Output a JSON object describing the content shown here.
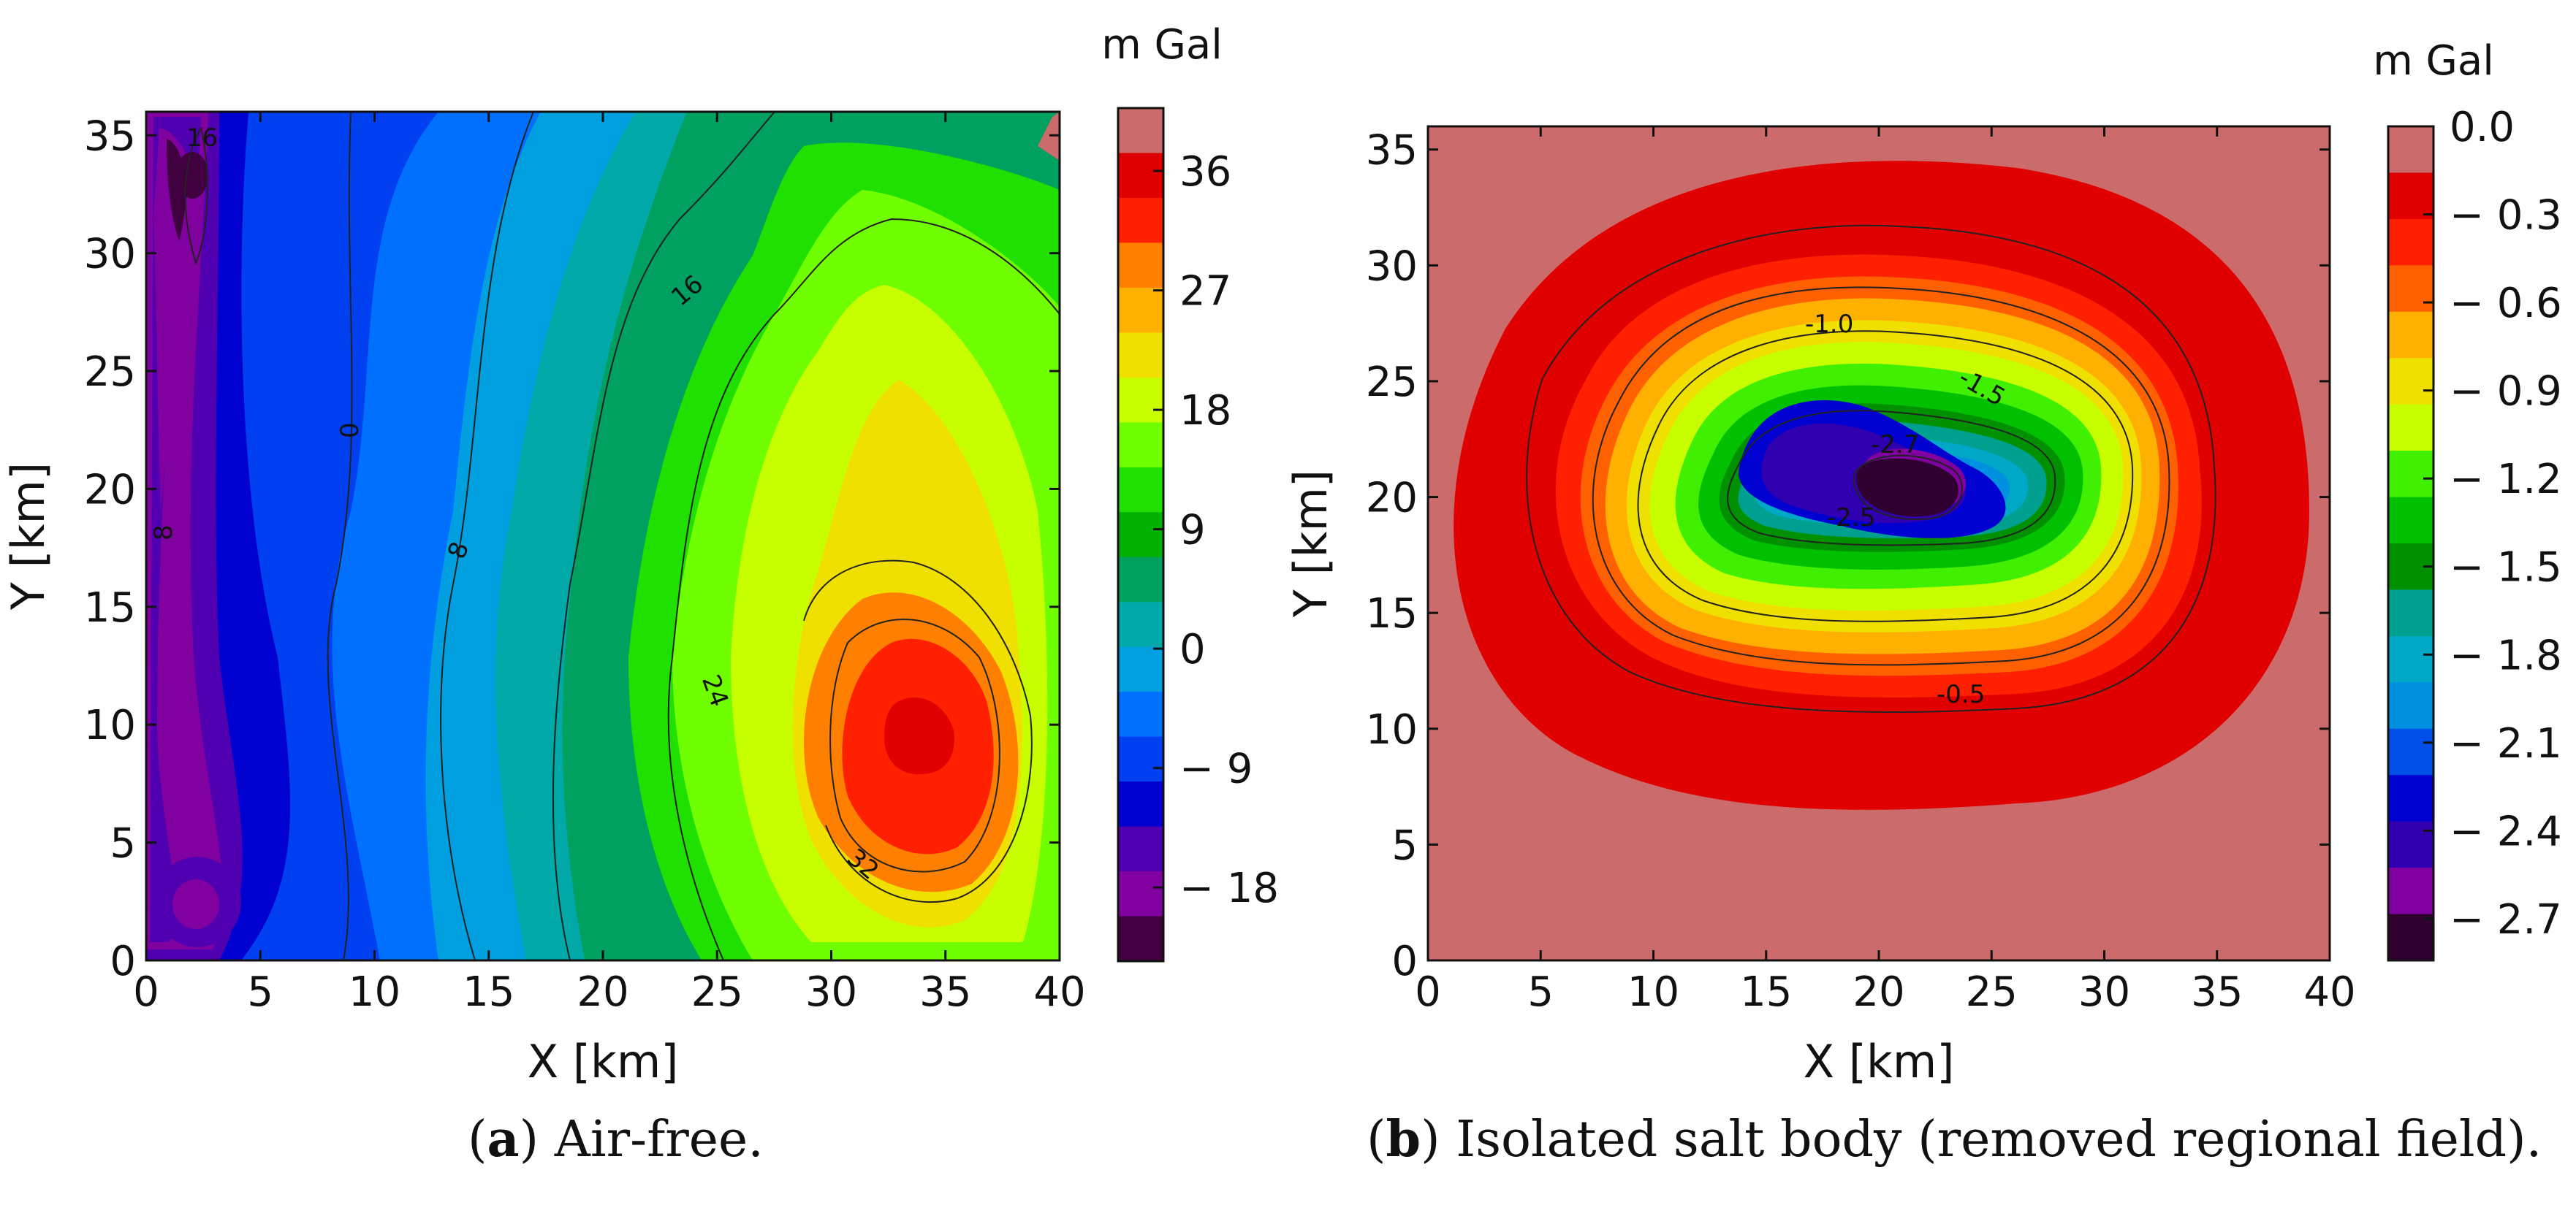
{
  "chart_data": [
    {
      "id": "a",
      "type": "contour",
      "xlabel": "X [km]",
      "ylabel": "Y [km]",
      "xlim": [
        0,
        40
      ],
      "ylim": [
        0,
        36
      ],
      "xticks": [
        "0",
        "5",
        "10",
        "15",
        "20",
        "25",
        "30",
        "35",
        "40"
      ],
      "yticks": [
        "0",
        "5",
        "10",
        "15",
        "20",
        "25",
        "30",
        "35"
      ],
      "colorbar": {
        "unit": "m Gal",
        "ticks": [
          "36",
          "27",
          "18",
          "9",
          "0",
          "− 9",
          "− 18"
        ],
        "colors": [
          "#cc6b6b",
          "#e00000",
          "#ff2000",
          "#ff8000",
          "#ffb000",
          "#f0e000",
          "#c8ff00",
          "#70ff00",
          "#20e000",
          "#00b000",
          "#00a060",
          "#00a8a8",
          "#00a0e0",
          "#0070ff",
          "#0040f0",
          "#0000d0",
          "#5000b0",
          "#8000a0",
          "#400040"
        ]
      },
      "contour_labels": [
        "16",
        "16",
        "0",
        "8",
        "8",
        "24",
        "32"
      ],
      "caption_label": "a",
      "caption_text": " Air-free."
    },
    {
      "id": "b",
      "type": "contour",
      "xlabel": "X [km]",
      "ylabel": "Y [km]",
      "xlim": [
        0,
        40
      ],
      "ylim": [
        0,
        36
      ],
      "xticks": [
        "0",
        "5",
        "10",
        "15",
        "20",
        "25",
        "30",
        "35",
        "40"
      ],
      "yticks": [
        "0",
        "5",
        "10",
        "15",
        "20",
        "25",
        "30",
        "35"
      ],
      "colorbar": {
        "unit": "m Gal",
        "ticks": [
          "0.0",
          "− 0.3",
          "− 0.6",
          "− 0.9",
          "− 1.2",
          "− 1.5",
          "− 1.8",
          "− 2.1",
          "− 2.4",
          "− 2.7"
        ],
        "colors": [
          "#cc6b6b",
          "#e00000",
          "#ff2000",
          "#ff6000",
          "#ffb000",
          "#f0e000",
          "#c8ff00",
          "#40f000",
          "#00c000",
          "#009000",
          "#00a090",
          "#00a8c8",
          "#0090e0",
          "#0050e8",
          "#0000d0",
          "#3000b0",
          "#8000a0",
          "#300030"
        ]
      },
      "contour_labels": [
        "-1.0",
        "-1.5",
        "-2.7",
        "-2.5",
        "-0.5"
      ],
      "caption_label": "b",
      "caption_text": " Isolated salt body (removed regional field)."
    }
  ]
}
